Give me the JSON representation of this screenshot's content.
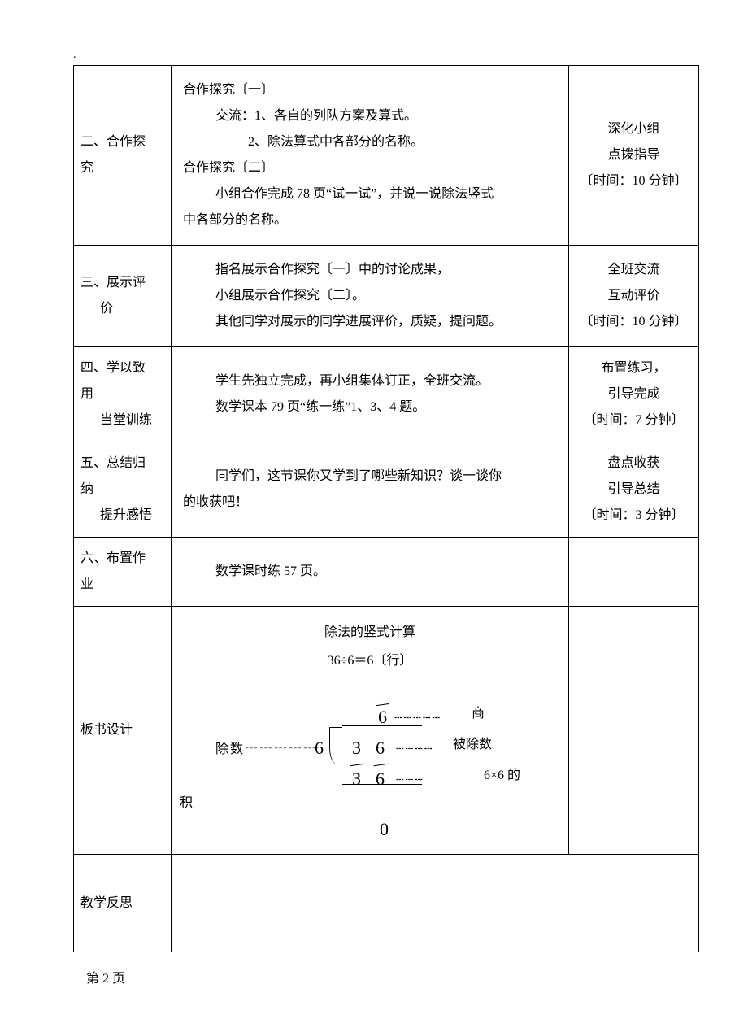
{
  "dot": ".",
  "rows": {
    "r1": {
      "label_a": "二、合作探",
      "label_b": "究",
      "content_l1": "合作探究〔一〕",
      "content_l2": "交流：1、各自的列队方案及算式。",
      "content_l3": "2、除法算式中各部分的名称。",
      "content_l4": "合作探究〔二〕",
      "content_l5": "小组合作完成 78 页“试一试”，并说一说除法竖式",
      "content_l6": "中各部分的名称。",
      "side_a": "深化小组",
      "side_b": "点拨指导",
      "side_c": "〔时间：10 分钟〕"
    },
    "r2": {
      "label_a": "三、展示评",
      "label_b": "价",
      "content_l1": "指名展示合作探究〔一〕中的讨论成果，",
      "content_l2": "小组展示合作探究〔二〕。",
      "content_l3": "其他同学对展示的同学进展评价，质疑，提问题。",
      "side_a": "全班交流",
      "side_b": "互动评价",
      "side_c": "〔时间：10 分钟〕"
    },
    "r3": {
      "label_a": "四、学以致",
      "label_b": "用",
      "label_c": "当堂训练",
      "content_l1": "学生先独立完成，再小组集体订正，全班交流。",
      "content_l2": "数学课本 79 页“练一练”1、3、4 题。",
      "side_a": "布置练习，",
      "side_b": "引导完成",
      "side_c": "〔时间：7 分钟〕"
    },
    "r4": {
      "label_a": "五、总结归",
      "label_b": "纳",
      "label_c": "提升感悟",
      "content_l1": "同学们，这节课你又学到了哪些新知识？谈一谈你",
      "content_l2": "的收获吧！",
      "side_a": "盘点收获",
      "side_b": "引导总结",
      "side_c": "〔时间：3 分钟〕"
    },
    "r5": {
      "label_a": "六、布置作",
      "label_b": "业",
      "content_l1": "数学课时练 57 页。"
    },
    "r6": {
      "label": "板书设计",
      "title": "除法的竖式计算",
      "eq": "36÷6＝6〔行〕",
      "quotient_label": "商",
      "divisor_label": "除数",
      "dividend_label": "被除数",
      "product_label": "6×6 的",
      "ji": "积",
      "dots_short": "┄┄┄",
      "dots_med": "┄┄┄┄",
      "dots_long": "┄┄┄┄┄",
      "n6": "6",
      "n3": "3",
      "n0": "0"
    },
    "r7": {
      "label": "教学反思"
    }
  },
  "page_footer": "第 2 页"
}
